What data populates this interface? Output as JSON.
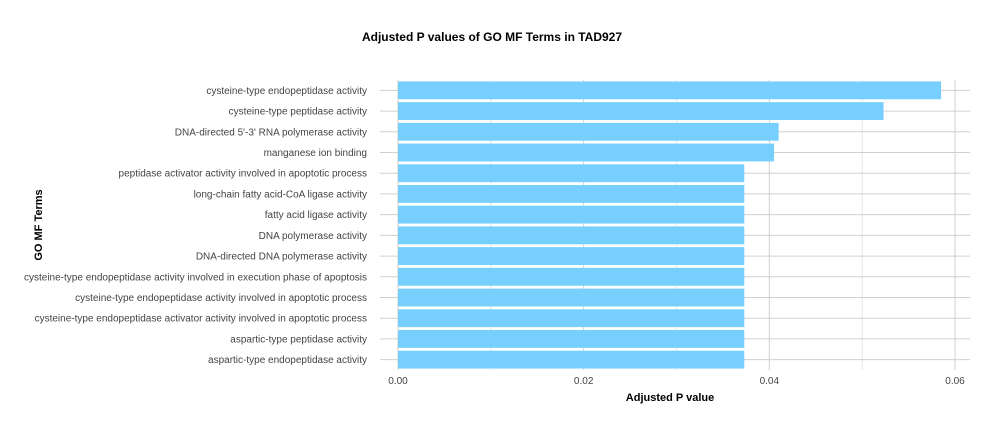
{
  "chart_data": {
    "type": "bar",
    "orientation": "horizontal",
    "title": "Adjusted P values of GO MF Terms in TAD927",
    "xlabel": "Adjusted P value",
    "ylabel": "GO MF Terms",
    "xlim": [
      0,
      0.061
    ],
    "x_ticks": [
      "0.00",
      "0.02",
      "0.04",
      "0.06"
    ],
    "x_tick_values": [
      0,
      0.02,
      0.04,
      0.06
    ],
    "grid": true,
    "bar_color": "#76CFFC",
    "categories": [
      "cysteine-type endopeptidase activity",
      "cysteine-type peptidase activity",
      "DNA-directed 5'-3' RNA polymerase activity",
      "manganese ion binding",
      "peptidase activator activity involved in apoptotic process",
      "long-chain fatty acid-CoA ligase activity",
      "fatty acid ligase activity",
      "DNA polymerase activity",
      "DNA-directed DNA polymerase activity",
      "cysteine-type endopeptidase activity involved in execution phase of apoptosis",
      "cysteine-type endopeptidase activity involved in apoptotic process",
      "cysteine-type endopeptidase activator activity involved in apoptotic process",
      "aspartic-type peptidase activity",
      "aspartic-type endopeptidase activity"
    ],
    "values": [
      0.0585,
      0.0523,
      0.041,
      0.0405,
      0.0373,
      0.0373,
      0.0373,
      0.0373,
      0.0373,
      0.0373,
      0.0373,
      0.0373,
      0.0373,
      0.0373
    ]
  }
}
